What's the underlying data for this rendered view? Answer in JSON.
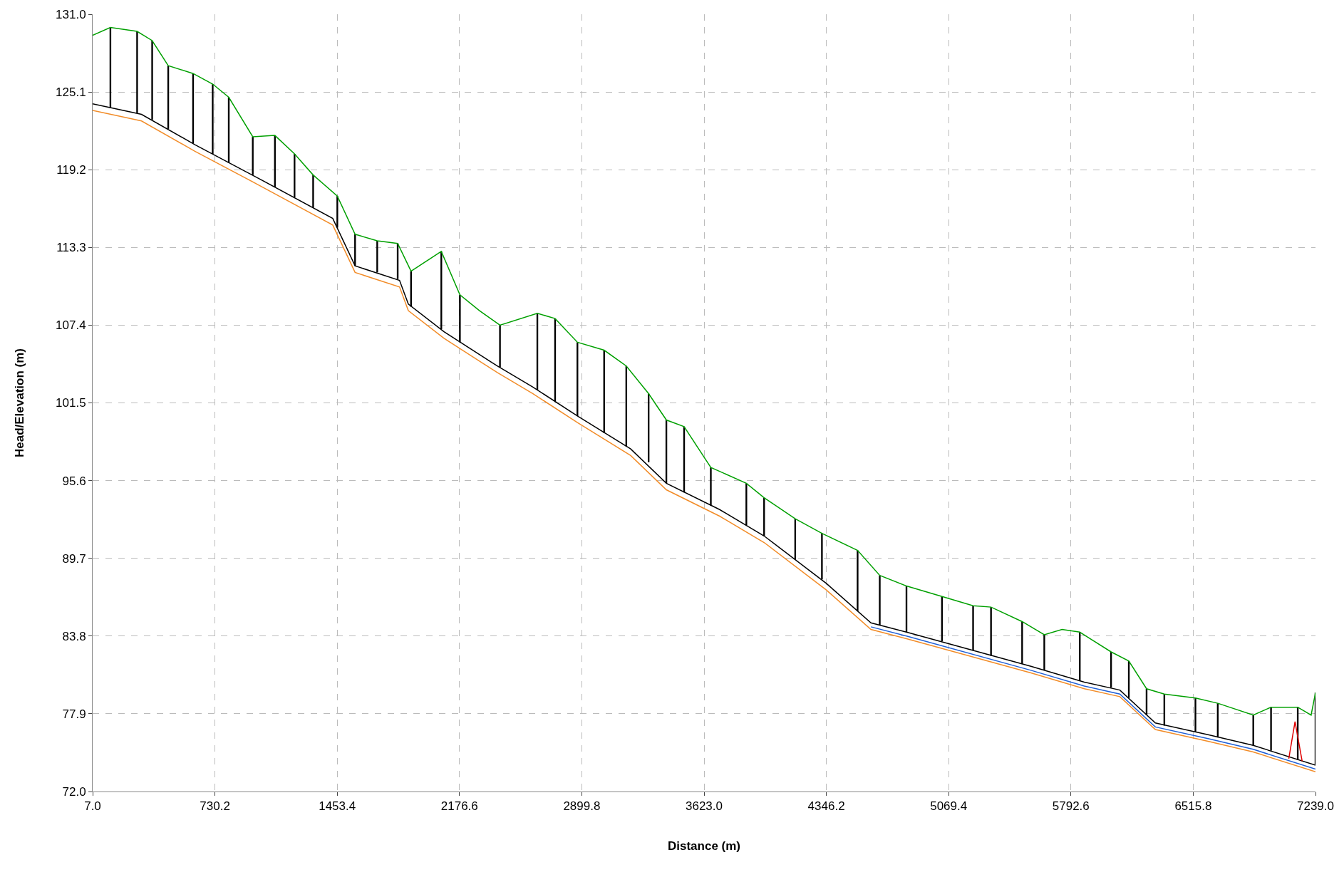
{
  "chart_data": {
    "type": "line",
    "xlabel": "Distance (m)",
    "ylabel": "Head/Elevation (m)",
    "xlim": [
      7.0,
      7239.0
    ],
    "xticks": [
      {
        "value": 7.0,
        "label": "7.0"
      },
      {
        "value": 730.2,
        "label": "730.2"
      },
      {
        "value": 1453.4,
        "label": "1453.4"
      },
      {
        "value": 2176.6,
        "label": "2176.6"
      },
      {
        "value": 2899.8,
        "label": "2899.8"
      },
      {
        "value": 3623.0,
        "label": "3623.0"
      },
      {
        "value": 4346.2,
        "label": "4346.2"
      },
      {
        "value": 5069.4,
        "label": "5069.4"
      },
      {
        "value": 5792.6,
        "label": "5792.6"
      },
      {
        "value": 6515.8,
        "label": "6515.8"
      },
      {
        "value": 7239.0,
        "label": "7239.0"
      }
    ],
    "ylim": [
      72.0,
      131.0
    ],
    "yticks": [
      {
        "value": 72.0,
        "label": "72.0"
      },
      {
        "value": 77.9,
        "label": "77.9"
      },
      {
        "value": 83.8,
        "label": "83.8"
      },
      {
        "value": 89.7,
        "label": "89.7"
      },
      {
        "value": 95.6,
        "label": "95.6"
      },
      {
        "value": 101.5,
        "label": "101.5"
      },
      {
        "value": 107.4,
        "label": "107.4"
      },
      {
        "value": 113.3,
        "label": "113.3"
      },
      {
        "value": 119.2,
        "label": "119.2"
      },
      {
        "value": 125.1,
        "label": "125.1"
      },
      {
        "value": 131.0,
        "label": "131.0"
      }
    ],
    "grid": true,
    "line_style": "solid",
    "marker": "none",
    "series": [
      {
        "type": "bar",
        "color": "#000000",
        "x": [
          112,
          270,
          359,
          454,
          601,
          717,
          812,
          954,
          1085,
          1201,
          1311,
          1454,
          1559,
          1690,
          1811,
          1890,
          2069,
          2179,
          2416,
          2637,
          2742,
          2874,
          3032,
          3163,
          3295,
          3400,
          3505,
          3663,
          3873,
          3978,
          4162,
          4320,
          4531,
          4662,
          4820,
          5030,
          5214,
          5320,
          5504,
          5635,
          5845,
          6030,
          6135,
          6240,
          6345,
          6529,
          6661,
          6871,
          6976,
          7134,
          7239
        ],
        "base": [
          123.9,
          123.5,
          123.0,
          122.3,
          121.2,
          120.4,
          119.7,
          118.8,
          117.9,
          117.1,
          116.3,
          114.8,
          111.9,
          111.4,
          110.9,
          108.8,
          107.1,
          106.1,
          104.2,
          102.5,
          101.6,
          100.5,
          99.2,
          98.2,
          97.0,
          95.4,
          94.7,
          93.7,
          92.2,
          91.4,
          89.6,
          88.1,
          85.7,
          84.6,
          84.1,
          83.4,
          82.7,
          82.3,
          81.7,
          81.2,
          80.4,
          79.9,
          79.1,
          77.8,
          77.0,
          76.5,
          76.1,
          75.5,
          75.1,
          74.4,
          74.0
        ],
        "values": [
          6.1,
          6.2,
          6.0,
          4.8,
          5.3,
          5.3,
          5.0,
          2.9,
          3.9,
          3.3,
          2.5,
          2.4,
          2.4,
          2.4,
          2.7,
          2.7,
          5.9,
          3.6,
          3.2,
          5.8,
          6.3,
          5.6,
          6.3,
          6.1,
          5.2,
          4.8,
          5.0,
          2.9,
          3.2,
          2.9,
          3.1,
          3.5,
          4.6,
          3.8,
          3.5,
          3.4,
          3.4,
          3.7,
          3.2,
          2.7,
          3.7,
          2.7,
          2.8,
          2.0,
          2.4,
          2.6,
          2.6,
          2.3,
          3.3,
          4.0,
          5.5
        ]
      },
      {
        "color": "#00a000",
        "x": [
          7,
          112,
          270,
          359,
          454,
          601,
          717,
          812,
          954,
          1085,
          1201,
          1311,
          1454,
          1559,
          1690,
          1811,
          1890,
          2069,
          2179,
          2295,
          2416,
          2637,
          2742,
          2874,
          3032,
          3163,
          3295,
          3400,
          3505,
          3663,
          3873,
          3978,
          4162,
          4320,
          4531,
          4662,
          4820,
          5030,
          5214,
          5320,
          5504,
          5635,
          5740,
          5845,
          6030,
          6135,
          6240,
          6345,
          6529,
          6661,
          6871,
          6976,
          7134,
          7213,
          7239
        ],
        "values": [
          129.4,
          130.0,
          129.7,
          129.0,
          127.1,
          126.5,
          125.7,
          124.7,
          121.7,
          121.8,
          120.4,
          118.8,
          117.2,
          114.3,
          113.8,
          113.6,
          111.5,
          113.0,
          109.7,
          108.5,
          107.4,
          108.3,
          107.9,
          106.1,
          105.5,
          104.3,
          102.2,
          100.2,
          99.7,
          96.6,
          95.4,
          94.3,
          92.7,
          91.6,
          90.3,
          88.4,
          87.6,
          86.8,
          86.1,
          86.0,
          84.9,
          83.9,
          84.3,
          84.1,
          82.6,
          81.9,
          79.8,
          79.4,
          79.1,
          78.7,
          77.8,
          78.4,
          78.4,
          77.8,
          79.5
        ]
      },
      {
        "color": "#f28c28",
        "x": [
          7,
          296,
          612,
          980,
          1427,
          1559,
          1822,
          1874,
          2085,
          2400,
          2611,
          2874,
          3189,
          3400,
          3715,
          3978,
          4346,
          4610,
          4820,
          5556,
          5872,
          6082,
          6292,
          6608,
          6871,
          7239
        ],
        "values": [
          123.7,
          122.9,
          120.6,
          118.1,
          115.0,
          111.4,
          110.3,
          108.5,
          106.4,
          103.8,
          102.2,
          100.0,
          97.5,
          94.9,
          92.9,
          90.9,
          87.3,
          84.3,
          83.6,
          81.0,
          79.8,
          79.2,
          76.7,
          75.8,
          75.0,
          73.5
        ]
      },
      {
        "color": "#1f5fd6",
        "x": [
          4610,
          4820,
          5556,
          5872,
          6082,
          6292,
          6608,
          6871,
          7239
        ],
        "values": [
          84.5,
          83.8,
          81.2,
          80.0,
          79.4,
          76.9,
          76.0,
          75.2,
          73.7
        ]
      },
      {
        "color": "#000000",
        "x": [
          7,
          296,
          612,
          980,
          1427,
          1559,
          1822,
          1874,
          2085,
          2400,
          2611,
          2874,
          3189,
          3400,
          3715,
          3978,
          4346,
          4610,
          4820,
          5556,
          5872,
          6082,
          6292,
          6608,
          6871,
          7239
        ],
        "values": [
          124.2,
          123.4,
          121.1,
          118.6,
          115.5,
          111.9,
          110.8,
          109.0,
          106.9,
          104.3,
          102.7,
          100.5,
          98.0,
          95.4,
          93.4,
          91.4,
          87.8,
          84.8,
          84.1,
          81.5,
          80.3,
          79.7,
          77.2,
          76.3,
          75.5,
          74.0
        ]
      },
      {
        "color": "#e00000",
        "x": [
          7081,
          7118,
          7160
        ],
        "values": [
          74.5,
          77.3,
          74.3
        ]
      }
    ]
  }
}
